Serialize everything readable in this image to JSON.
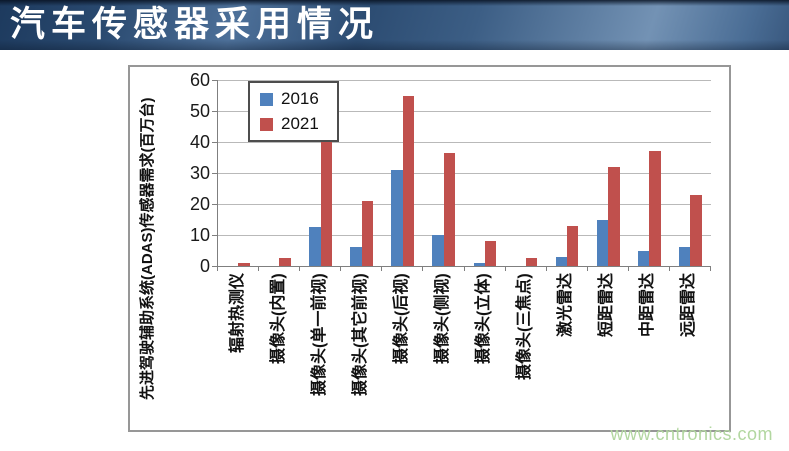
{
  "header": {
    "title": "汽车传感器采用情况"
  },
  "watermark": {
    "text": "www.cntronics.com"
  },
  "colors": {
    "series_2016": "#4f81bd",
    "series_2021": "#c0504d",
    "gridline": "#b9b9b9",
    "axis": "#7f7f7f",
    "frame_border": "#979797",
    "watermark_text": "#b2d7a0",
    "banner_blue": "#2c4c72"
  },
  "chart_data": {
    "type": "bar",
    "title": "",
    "y_axis_title": "先进驾驶辅助系统(ADAS)传感器需求(百万台)",
    "categories": [
      "辐射热测仪",
      "摄像头(内置)",
      "摄像头(单一前视)",
      "摄像头(其它前视)",
      "摄像头(后视)",
      "摄像头(侧视)",
      "摄像头(立体)",
      "摄像头(三焦点)",
      "激光雷达",
      "短距雷达",
      "中距雷达",
      "远距雷达"
    ],
    "series": [
      {
        "name": "2016",
        "color": "#4f81bd",
        "values": [
          0,
          0,
          12.5,
          6,
          31,
          10,
          1,
          0,
          3,
          15,
          5,
          6
        ]
      },
      {
        "name": "2021",
        "color": "#c0504d",
        "values": [
          1,
          2.5,
          43,
          21,
          55,
          36.5,
          8,
          2.5,
          13,
          32,
          37,
          23
        ]
      }
    ],
    "ylim": [
      0,
      60
    ],
    "yticks": [
      0,
      10,
      20,
      30,
      40,
      50,
      60
    ],
    "grid": true,
    "legend_position": "top-left-inside"
  }
}
